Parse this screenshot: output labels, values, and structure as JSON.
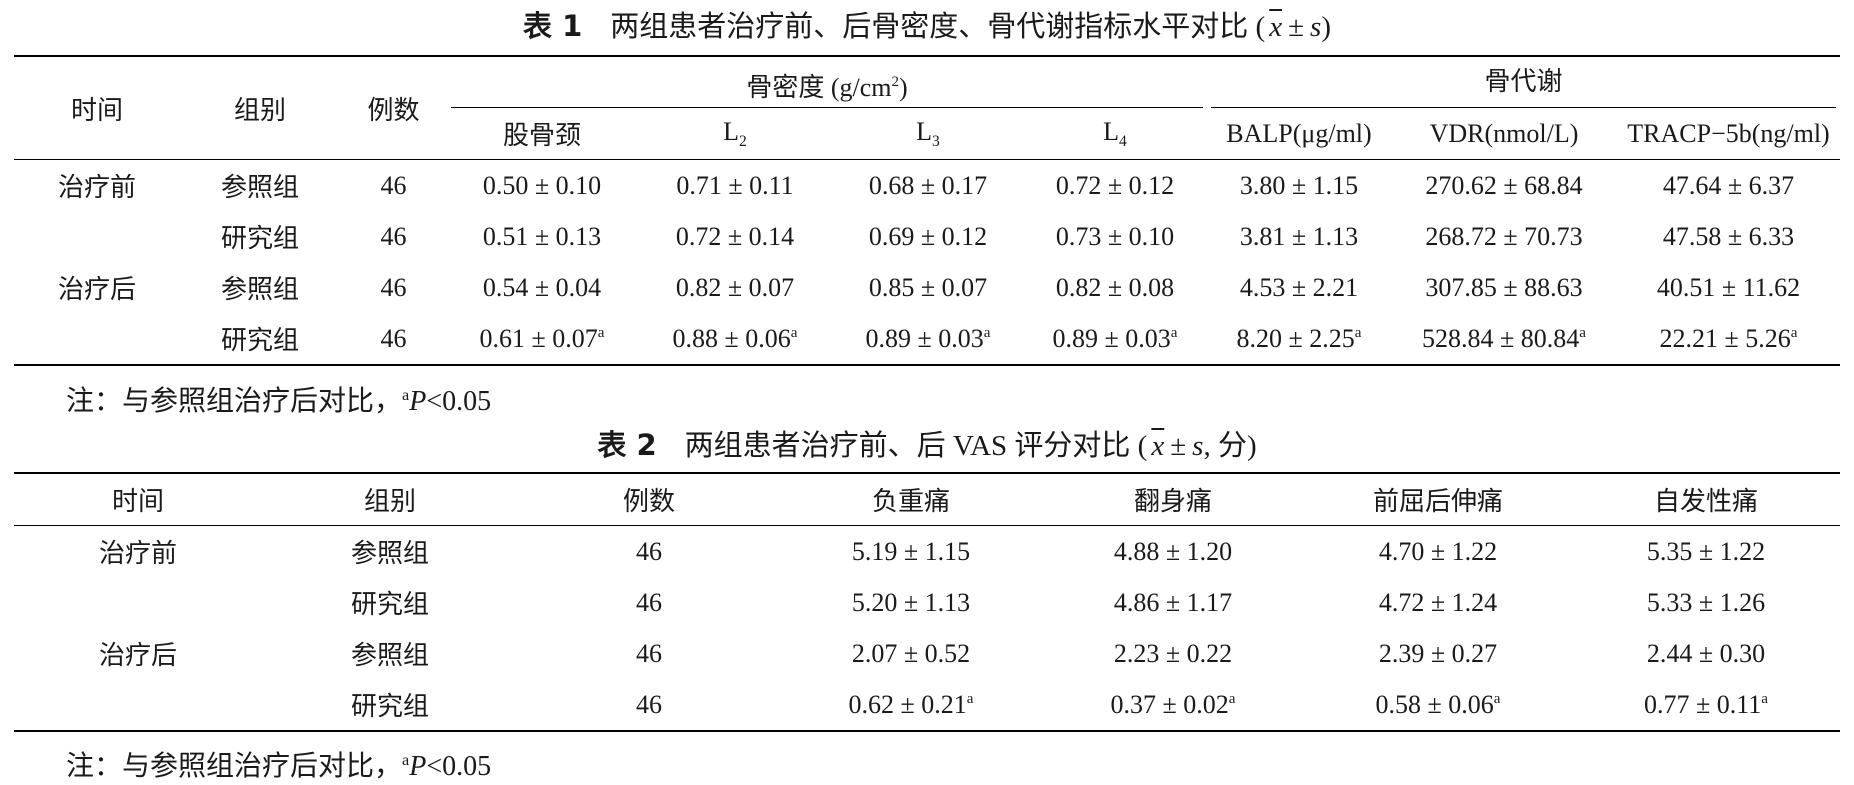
{
  "table1": {
    "label": "表 1",
    "title": "两组患者治疗前、后骨密度、骨代谢指标水平对比",
    "stat": {
      "open": "(",
      "mean": "x",
      "pm": "±",
      "sd": "s",
      "close": ")"
    },
    "header": {
      "time": "时间",
      "group": "组别",
      "n": "例数",
      "bmd": {
        "text": "骨密度 (g/cm",
        "sup": "2",
        "close": ")"
      },
      "metab": "骨代谢",
      "cols": [
        {
          "text": "股骨颈"
        },
        {
          "text": "L",
          "sub": "2"
        },
        {
          "text": "L",
          "sub": "3"
        },
        {
          "text": "L",
          "sub": "4"
        },
        {
          "text": "BALP(μg/ml)"
        },
        {
          "text": "VDR(nmol/L)"
        },
        {
          "text": "TRACP−5b(ng/ml)"
        }
      ]
    },
    "rows": [
      {
        "time": "治疗前",
        "group": "参照组",
        "n": "46",
        "cells": [
          {
            "text": "0.50 ± 0.10"
          },
          {
            "text": "0.71 ± 0.11"
          },
          {
            "text": "0.68 ± 0.17"
          },
          {
            "text": "0.72 ± 0.12"
          },
          {
            "text": "3.80 ± 1.15"
          },
          {
            "text": "270.62 ± 68.84"
          },
          {
            "text": "47.64 ± 6.37"
          }
        ]
      },
      {
        "time": null,
        "group": "研究组",
        "n": "46",
        "cells": [
          {
            "text": "0.51 ± 0.13"
          },
          {
            "text": "0.72 ± 0.14"
          },
          {
            "text": "0.69 ± 0.12"
          },
          {
            "text": "0.73 ± 0.10"
          },
          {
            "text": "3.81 ± 1.13"
          },
          {
            "text": "268.72 ± 70.73"
          },
          {
            "text": "47.58 ± 6.33"
          }
        ]
      },
      {
        "time": "治疗后",
        "group": "参照组",
        "n": "46",
        "cells": [
          {
            "text": "0.54 ± 0.04"
          },
          {
            "text": "0.82 ± 0.07"
          },
          {
            "text": "0.85 ± 0.07"
          },
          {
            "text": "0.82 ± 0.08"
          },
          {
            "text": "4.53 ± 2.21"
          },
          {
            "text": "307.85 ± 88.63"
          },
          {
            "text": "40.51 ± 11.62"
          }
        ]
      },
      {
        "time": null,
        "group": "研究组",
        "n": "46",
        "cells": [
          {
            "text": "0.61 ± 0.07",
            "sup": "a"
          },
          {
            "text": "0.88 ± 0.06",
            "sup": "a"
          },
          {
            "text": "0.89 ± 0.03",
            "sup": "a"
          },
          {
            "text": "0.89 ± 0.03",
            "sup": "a"
          },
          {
            "text": "8.20 ± 2.25",
            "sup": "a"
          },
          {
            "text": "528.84 ± 80.84",
            "sup": "a"
          },
          {
            "text": "22.21 ± 5.26",
            "sup": "a"
          }
        ]
      }
    ],
    "note": {
      "prefix": "注：与参照组治疗后对比，",
      "sup": "a",
      "p": "P",
      "rest": "<0.05"
    }
  },
  "table2": {
    "label": "表 2",
    "title": "两组患者治疗前、后 VAS 评分对比",
    "stat": {
      "open": "(",
      "mean": "x",
      "pm": "±",
      "sd": "s",
      "extra": ", 分",
      "close": ")"
    },
    "header": [
      "时间",
      "组别",
      "例数",
      "负重痛",
      "翻身痛",
      "前屈后伸痛",
      "自发性痛"
    ],
    "rows": [
      {
        "time": "治疗前",
        "group": "参照组",
        "n": "46",
        "cells": [
          {
            "text": "5.19 ± 1.15"
          },
          {
            "text": "4.88 ± 1.20"
          },
          {
            "text": "4.70 ± 1.22"
          },
          {
            "text": "5.35 ± 1.22"
          }
        ]
      },
      {
        "time": null,
        "group": "研究组",
        "n": "46",
        "cells": [
          {
            "text": "5.20 ± 1.13"
          },
          {
            "text": "4.86 ± 1.17"
          },
          {
            "text": "4.72 ± 1.24"
          },
          {
            "text": "5.33 ± 1.26"
          }
        ]
      },
      {
        "time": "治疗后",
        "group": "参照组",
        "n": "46",
        "cells": [
          {
            "text": "2.07 ± 0.52"
          },
          {
            "text": "2.23 ± 0.22"
          },
          {
            "text": "2.39 ± 0.27"
          },
          {
            "text": "2.44 ± 0.30"
          }
        ]
      },
      {
        "time": null,
        "group": "研究组",
        "n": "46",
        "cells": [
          {
            "text": "0.62 ± 0.21",
            "sup": "a"
          },
          {
            "text": "0.37 ± 0.02",
            "sup": "a"
          },
          {
            "text": "0.58 ± 0.06",
            "sup": "a"
          },
          {
            "text": "0.77 ± 0.11",
            "sup": "a"
          }
        ]
      }
    ],
    "note": {
      "prefix": "注：与参照组治疗后对比，",
      "sup": "a",
      "p": "P",
      "rest": "<0.05"
    }
  }
}
